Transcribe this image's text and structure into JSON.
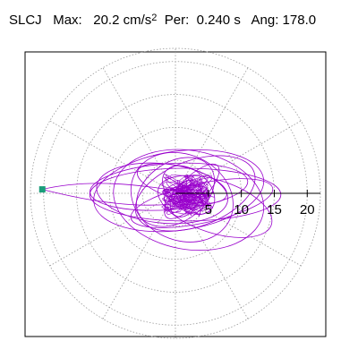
{
  "header": {
    "station": "SLCJ",
    "max_label": "Max:",
    "max_value": "20.2",
    "max_unit": "cm/s",
    "max_unit_exp": "2",
    "per_label": "Per:",
    "per_value": "0.240 s",
    "ang_label": "Ang:",
    "ang_value": "178.0"
  },
  "chart_data": {
    "type": "scatter",
    "plot_kind": "polar orbit (particle motion)",
    "grid": "polar, dotted",
    "r_ticks": [
      "5",
      "10",
      "15",
      "20"
    ],
    "r_max": 22,
    "angular_grid_step_deg": 30,
    "colors": {
      "trace": "#9900cc",
      "grid": "#9a9a9a",
      "marker": "#1a9e7a",
      "axis": "#000000"
    },
    "max_point": {
      "x": -20.2,
      "y": 0.6
    },
    "orbit_ellipses": [
      {
        "cx": 1.5,
        "cy": -0.2,
        "a": 14.5,
        "b": 4.0,
        "angle": 0
      },
      {
        "cx": 0.5,
        "cy": 0.4,
        "a": 13.0,
        "b": 6.0,
        "angle": 8
      },
      {
        "cx": 2.0,
        "cy": -1.0,
        "a": 11.5,
        "b": 7.5,
        "angle": -10
      },
      {
        "cx": -1.0,
        "cy": 1.0,
        "a": 12.0,
        "b": 3.5,
        "angle": 4
      },
      {
        "cx": 3.0,
        "cy": 0.0,
        "a": 9.5,
        "b": 5.0,
        "angle": 20
      },
      {
        "cx": 1.0,
        "cy": -0.6,
        "a": 8.0,
        "b": 6.5,
        "angle": -25
      },
      {
        "cx": 0.0,
        "cy": 0.2,
        "a": 6.5,
        "b": 4.5,
        "angle": 35
      },
      {
        "cx": 2.0,
        "cy": 0.5,
        "a": 4.5,
        "b": 3.0,
        "angle": -40
      },
      {
        "cx": 1.5,
        "cy": -0.8,
        "a": 3.0,
        "b": 2.0,
        "angle": 60
      },
      {
        "cx": 4.0,
        "cy": -1.5,
        "a": 11.0,
        "b": 3.0,
        "angle": 12
      },
      {
        "cx": -2.0,
        "cy": 0.0,
        "a": 10.0,
        "b": 4.5,
        "angle": -6
      },
      {
        "cx": 1.0,
        "cy": 1.5,
        "a": 7.0,
        "b": 2.5,
        "angle": -15
      },
      {
        "cx": 0.5,
        "cy": -0.5,
        "a": 2.2,
        "b": 1.5,
        "angle": 10
      },
      {
        "cx": 2.5,
        "cy": 0.3,
        "a": 5.5,
        "b": 2.0,
        "angle": 45
      },
      {
        "cx": 6.0,
        "cy": -2.0,
        "a": 9.0,
        "b": 4.0,
        "angle": -18
      }
    ]
  }
}
